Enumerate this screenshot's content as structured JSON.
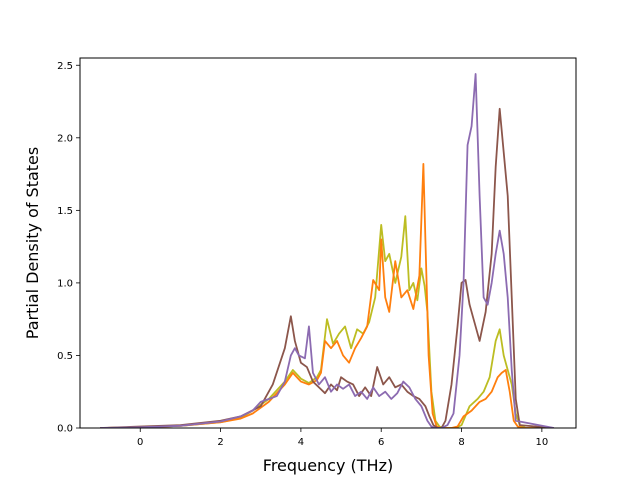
{
  "chart_data": {
    "type": "line",
    "title": "",
    "xlabel": "Frequency (THz)",
    "ylabel": "Partial Density of States",
    "xlim": [
      -1.5,
      10.85
    ],
    "ylim": [
      0,
      2.55
    ],
    "xticks": [
      0,
      2,
      4,
      6,
      8,
      10
    ],
    "yticks": [
      0.0,
      0.5,
      1.0,
      1.5,
      2.0,
      2.5
    ],
    "xtick_labels": [
      "0",
      "2",
      "4",
      "6",
      "8",
      "10"
    ],
    "ytick_labels": [
      "0.0",
      "0.5",
      "1.0",
      "1.5",
      "2.0",
      "2.5"
    ],
    "grid": false,
    "legend": "none",
    "series": [
      {
        "color": "#bcbd22",
        "x": [
          -1.0,
          0.0,
          1.0,
          2.0,
          2.5,
          2.8,
          3.2,
          3.6,
          3.8,
          4.0,
          4.2,
          4.4,
          4.5,
          4.65,
          4.8,
          4.95,
          5.1,
          5.25,
          5.4,
          5.55,
          5.7,
          5.85,
          6.0,
          6.1,
          6.2,
          6.35,
          6.5,
          6.6,
          6.7,
          6.8,
          6.9,
          7.0,
          7.08,
          7.15,
          7.25,
          7.35,
          7.45,
          7.55,
          7.7,
          7.85,
          8.0,
          8.2,
          8.4,
          8.55,
          8.7,
          8.85,
          8.95,
          9.05,
          9.15,
          9.25,
          9.35,
          9.45,
          9.6,
          10.3
        ],
        "y": [
          0.0,
          0.005,
          0.015,
          0.04,
          0.07,
          0.12,
          0.2,
          0.32,
          0.4,
          0.34,
          0.31,
          0.35,
          0.4,
          0.75,
          0.58,
          0.65,
          0.7,
          0.55,
          0.68,
          0.65,
          0.73,
          0.9,
          1.4,
          1.15,
          1.2,
          1.0,
          1.18,
          1.46,
          0.95,
          1.0,
          0.88,
          1.1,
          0.98,
          0.8,
          0.25,
          0.05,
          0.01,
          0.0,
          0.0,
          0.0,
          0.02,
          0.15,
          0.2,
          0.25,
          0.35,
          0.6,
          0.68,
          0.5,
          0.4,
          0.3,
          0.1,
          0.02,
          0.0,
          0.0
        ]
      },
      {
        "color": "#ff7f0e",
        "x": [
          -1.0,
          0.0,
          1.0,
          2.0,
          2.5,
          2.8,
          3.2,
          3.6,
          3.8,
          4.0,
          4.2,
          4.4,
          4.5,
          4.6,
          4.75,
          4.9,
          5.05,
          5.2,
          5.35,
          5.5,
          5.65,
          5.8,
          5.95,
          6.0,
          6.1,
          6.2,
          6.35,
          6.5,
          6.65,
          6.8,
          6.95,
          7.05,
          7.1,
          7.18,
          7.28,
          7.38,
          7.48,
          7.6,
          7.75,
          7.9,
          8.05,
          8.25,
          8.45,
          8.6,
          8.75,
          8.9,
          9.0,
          9.1,
          9.2,
          9.3,
          9.4,
          9.55,
          10.3
        ],
        "y": [
          0.0,
          0.005,
          0.015,
          0.04,
          0.065,
          0.1,
          0.18,
          0.3,
          0.38,
          0.32,
          0.3,
          0.33,
          0.38,
          0.6,
          0.55,
          0.6,
          0.5,
          0.45,
          0.55,
          0.62,
          0.7,
          1.02,
          0.95,
          1.3,
          0.9,
          0.8,
          1.15,
          0.9,
          0.95,
          0.82,
          1.05,
          1.82,
          1.3,
          0.5,
          0.1,
          0.01,
          0.0,
          0.0,
          0.0,
          0.01,
          0.08,
          0.12,
          0.18,
          0.2,
          0.25,
          0.35,
          0.38,
          0.4,
          0.25,
          0.05,
          0.01,
          0.0,
          0.0
        ]
      },
      {
        "color": "#8c564b",
        "x": [
          -1.0,
          0.0,
          1.0,
          2.0,
          2.5,
          3.0,
          3.3,
          3.6,
          3.75,
          3.85,
          4.0,
          4.15,
          4.3,
          4.45,
          4.6,
          4.75,
          4.9,
          5.0,
          5.15,
          5.3,
          5.45,
          5.6,
          5.75,
          5.9,
          6.05,
          6.2,
          6.35,
          6.5,
          6.65,
          6.8,
          6.95,
          7.1,
          7.2,
          7.3,
          7.4,
          7.5,
          7.6,
          7.75,
          7.9,
          8.0,
          8.1,
          8.2,
          8.3,
          8.45,
          8.6,
          8.75,
          8.85,
          8.95,
          9.05,
          9.15,
          9.25,
          9.35,
          9.45,
          10.3
        ],
        "y": [
          0.0,
          0.01,
          0.02,
          0.05,
          0.08,
          0.15,
          0.3,
          0.55,
          0.77,
          0.6,
          0.45,
          0.42,
          0.32,
          0.28,
          0.24,
          0.3,
          0.26,
          0.35,
          0.32,
          0.3,
          0.22,
          0.28,
          0.22,
          0.42,
          0.3,
          0.35,
          0.28,
          0.3,
          0.25,
          0.22,
          0.2,
          0.15,
          0.08,
          0.02,
          0.0,
          0.0,
          0.05,
          0.3,
          0.7,
          1.0,
          1.02,
          0.85,
          0.75,
          0.6,
          0.8,
          1.2,
          1.8,
          2.2,
          1.9,
          1.6,
          0.9,
          0.2,
          0.02,
          0.0
        ]
      },
      {
        "color": "#8c6bb1",
        "x": [
          -1.0,
          0.0,
          1.0,
          2.0,
          2.5,
          2.8,
          3.0,
          3.2,
          3.4,
          3.6,
          3.75,
          3.85,
          3.95,
          4.1,
          4.2,
          4.3,
          4.45,
          4.6,
          4.75,
          4.9,
          5.05,
          5.2,
          5.35,
          5.5,
          5.65,
          5.8,
          5.95,
          6.1,
          6.25,
          6.4,
          6.55,
          6.7,
          6.85,
          7.0,
          7.15,
          7.25,
          7.35,
          7.5,
          7.65,
          7.8,
          7.95,
          8.05,
          8.15,
          8.25,
          8.35,
          8.45,
          8.55,
          8.65,
          8.75,
          8.85,
          8.95,
          9.05,
          9.15,
          9.25,
          9.35,
          10.3
        ],
        "y": [
          0.0,
          0.005,
          0.015,
          0.045,
          0.08,
          0.12,
          0.18,
          0.2,
          0.22,
          0.32,
          0.5,
          0.55,
          0.5,
          0.48,
          0.7,
          0.38,
          0.3,
          0.35,
          0.25,
          0.3,
          0.27,
          0.3,
          0.22,
          0.25,
          0.2,
          0.28,
          0.22,
          0.25,
          0.2,
          0.24,
          0.32,
          0.28,
          0.2,
          0.15,
          0.05,
          0.01,
          0.0,
          0.0,
          0.02,
          0.1,
          0.5,
          1.0,
          1.95,
          2.08,
          2.44,
          1.6,
          0.9,
          0.85,
          1.0,
          1.2,
          1.36,
          1.2,
          0.9,
          0.4,
          0.05,
          0.0
        ]
      }
    ]
  }
}
